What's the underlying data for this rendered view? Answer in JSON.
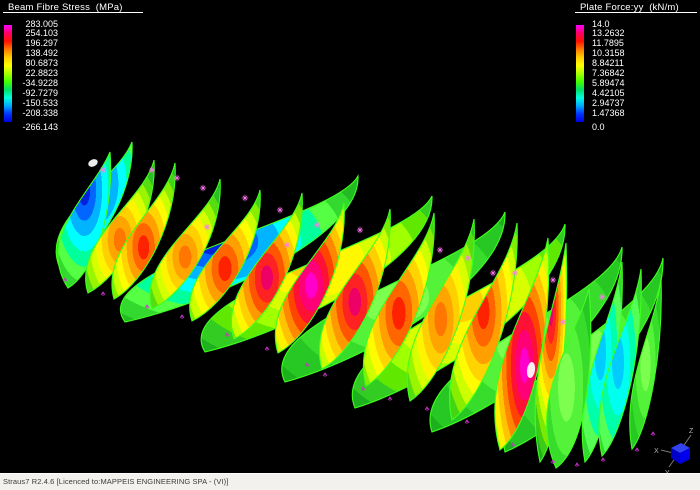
{
  "legend_left": {
    "title": "Beam Fibre Stress  (MPa)",
    "values": [
      "283.005",
      "254.103",
      "196.297",
      "138.492",
      "80.6873",
      "22.8823",
      "-34.9228",
      "-92.7279",
      "-150.533",
      "-208.338",
      "-266.143"
    ]
  },
  "legend_right": {
    "title": "Plate Force:yy  (kN/m)",
    "values": [
      "14.0",
      "13.2632",
      "11.7895",
      "10.3158",
      "8.84211",
      "7.36842",
      "5.89474",
      "4.42105",
      "2.94737",
      "1.47368",
      "0.0"
    ]
  },
  "legend_gradient_colors": [
    "#ff00ff",
    "#ff0066",
    "#ff1100",
    "#ff7700",
    "#ffcc00",
    "#ffff00",
    "#aaff00",
    "#44ff00",
    "#00e066",
    "#00ffdd",
    "#00aaff",
    "#0033ff",
    "#0000dd"
  ],
  "status_bar": {
    "text": "Straus7 R2.4.6 [Licenced to:MAPPEIS ENGINEERING SPA - (VI)]"
  },
  "axis_triad": {
    "x_label": "X",
    "y_label": "Y",
    "z_label": "Z",
    "origin_color": "#0000dd"
  },
  "model": {
    "petal_edge_color": "#3fff1e",
    "marker_color": "#ff77ee",
    "support_color": "#cc33cc",
    "palettes": {
      "hotMagenta": [
        "#ff00cc",
        "#ff0077",
        "#ff1133",
        "#ff4400",
        "#ff8800",
        "#ffc300",
        "#fff200",
        "#ccff00",
        "#88f400",
        "#44dd11",
        "#22bb22"
      ],
      "hotCrimson": [
        "#ee0066",
        "#ff2222",
        "#ff5500",
        "#ff9900",
        "#ffd000",
        "#fff700",
        "#c8ff00",
        "#7ee800",
        "#3bcc16",
        "#1fae1f"
      ],
      "hotRed": [
        "#ff2200",
        "#ff6600",
        "#ffa000",
        "#ffd400",
        "#fffb00",
        "#ccff00",
        "#88ee00",
        "#44d414",
        "#22b822"
      ],
      "warmOrange": [
        "#ff7700",
        "#ffa500",
        "#ffd000",
        "#fff400",
        "#d6ff00",
        "#99f500",
        "#55dd11",
        "#2abf22",
        "#1daa1d"
      ],
      "warmYellow": [
        "#ffd000",
        "#fff800",
        "#d8ff00",
        "#a0ff00",
        "#60e800",
        "#33cc22",
        "#1fb01f"
      ],
      "plainGreen": [
        "#7dff50",
        "#55f23a",
        "#38dd2b",
        "#27c824",
        "#1cb01c"
      ],
      "coolBlue": [
        "#0022dd",
        "#0066ff",
        "#00b4ff",
        "#00ffff",
        "#00ff9d",
        "#55ff44",
        "#33d92e",
        "#22bb22"
      ],
      "coolCyan": [
        "#00ccff",
        "#00ffee",
        "#00ffaa",
        "#55ff55",
        "#33d92e",
        "#22bb22"
      ]
    }
  }
}
